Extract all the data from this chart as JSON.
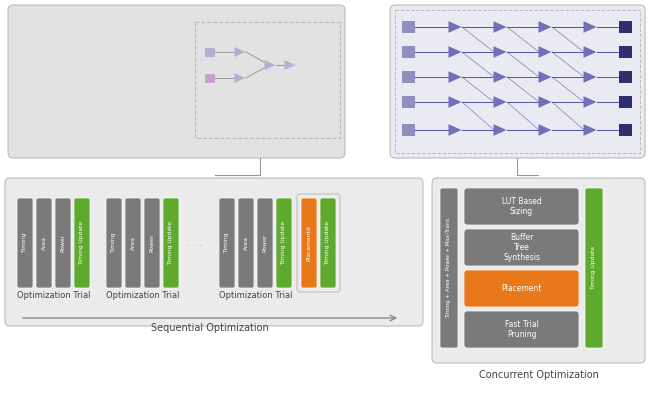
{
  "bg_color": "#ffffff",
  "panel_bg": "#ebebeb",
  "panel_border": "#bbbbbb",
  "box_gray": "#7a7a7a",
  "box_green": "#5faa2e",
  "box_orange": "#e8781a",
  "circuit_left_bg": "#e2e2e2",
  "circuit_right_bg": "#eaeaf2",
  "gate_purple_light": "#9898c8",
  "gate_purple_dark": "#3a3a88",
  "gate_purple_mid": "#6a6ab0",
  "seq_label": "Sequential Optimization",
  "conc_label": "Concurrent Optimization",
  "trial_label": "Optimization Trial",
  "lut_text": "LUT Based\nSizing",
  "buffer_text": "Buffer\nTree\nSynthesis",
  "placement_conc_text": "Placement",
  "fast_trial_text": "Fast Trial\nPruning",
  "timing_axis_text": "Timing + Area + Power + Max-Trans",
  "text_dark": "#444444",
  "arrow_color": "#888888",
  "connector_color": "#999999"
}
